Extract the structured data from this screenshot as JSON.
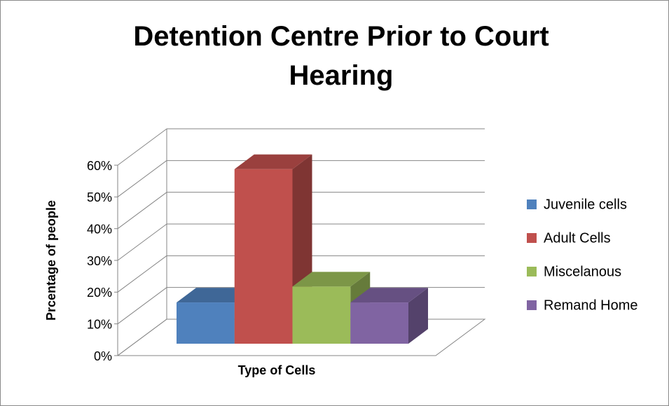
{
  "chart_data": {
    "type": "bar3d",
    "title": "Detention Centre Prior to Court Hearing",
    "xlabel": "Type of Cells",
    "ylabel": "Prcentage of people",
    "ylim": [
      0,
      60
    ],
    "yticks": [
      {
        "value": 0,
        "label": "0%"
      },
      {
        "value": 10,
        "label": "10%"
      },
      {
        "value": 20,
        "label": "20%"
      },
      {
        "value": 30,
        "label": "30%"
      },
      {
        "value": 40,
        "label": "40%"
      },
      {
        "value": 50,
        "label": "50%"
      },
      {
        "value": 60,
        "label": "60%"
      }
    ],
    "grid": true,
    "legend": "right",
    "series": [
      {
        "name": "Juvenile cells",
        "color": "#4f81bd",
        "values": [
          13
        ]
      },
      {
        "name": "Adult Cells",
        "color": "#c0504d",
        "values": [
          55
        ]
      },
      {
        "name": "Miscelanous",
        "color": "#9bbb59",
        "values": [
          18
        ]
      },
      {
        "name": "Remand Home",
        "color": "#8064a2",
        "values": [
          13
        ]
      }
    ]
  }
}
